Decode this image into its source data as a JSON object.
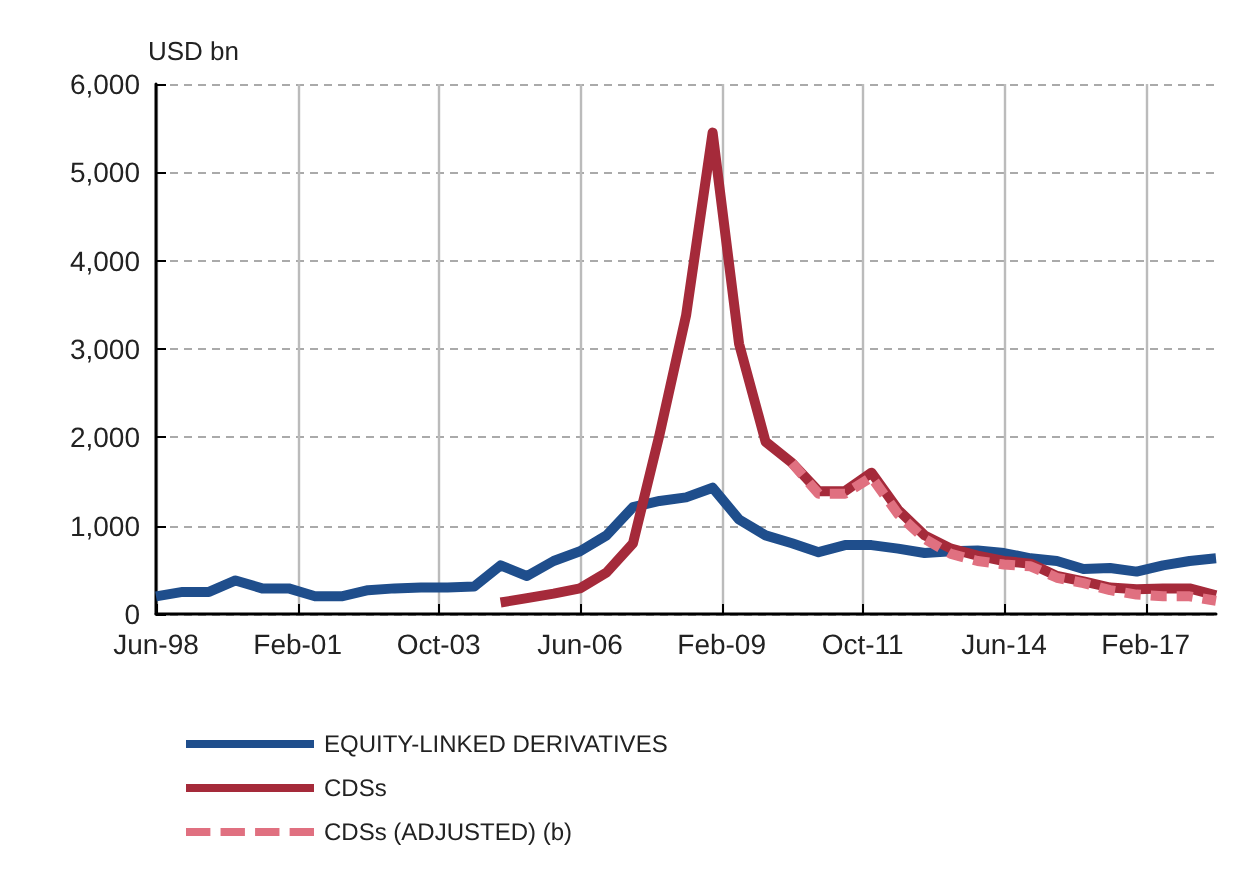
{
  "chart_data": {
    "type": "line",
    "ylabel": "USD bn",
    "x": [
      "1998-06",
      "1998-12",
      "1999-06",
      "1999-12",
      "2000-06",
      "2000-12",
      "2001-06",
      "2001-12",
      "2002-06",
      "2002-12",
      "2003-06",
      "2003-12",
      "2004-06",
      "2004-12",
      "2005-06",
      "2005-12",
      "2006-06",
      "2006-12",
      "2007-06",
      "2007-12",
      "2008-06",
      "2008-12",
      "2009-06",
      "2009-12",
      "2010-06",
      "2010-12",
      "2011-06",
      "2011-12",
      "2012-06",
      "2012-12",
      "2013-06",
      "2013-12",
      "2014-06",
      "2014-12",
      "2015-06",
      "2015-12",
      "2016-06",
      "2016-12",
      "2017-06",
      "2017-12",
      "2018-06"
    ],
    "series": [
      {
        "name": "EQUITY-LINKED DERIVATIVES",
        "color": "#1f4e8c",
        "line_style": "solid",
        "values": [
          200,
          250,
          250,
          380,
          290,
          290,
          200,
          200,
          270,
          290,
          300,
          300,
          310,
          550,
          430,
          600,
          710,
          890,
          1210,
          1280,
          1320,
          1430,
          1070,
          890,
          800,
          700,
          780,
          780,
          740,
          690,
          710,
          720,
          690,
          630,
          600,
          510,
          520,
          480,
          550,
          600,
          630
        ]
      },
      {
        "name": "CDSs",
        "color": "#a52a3a",
        "line_style": "solid",
        "values": [
          null,
          null,
          null,
          null,
          null,
          null,
          null,
          null,
          null,
          null,
          null,
          null,
          null,
          130,
          180,
          230,
          290,
          470,
          800,
          2030,
          3380,
          5450,
          3060,
          1950,
          1710,
          1390,
          1390,
          1600,
          1180,
          890,
          740,
          660,
          600,
          570,
          430,
          370,
          300,
          280,
          290,
          290,
          210
        ]
      },
      {
        "name": "CDSs (ADJUSTED) (b)",
        "color": "#e07080",
        "line_style": "dashed",
        "values": [
          null,
          null,
          null,
          null,
          null,
          null,
          null,
          null,
          null,
          null,
          null,
          null,
          null,
          null,
          null,
          null,
          null,
          null,
          null,
          null,
          null,
          null,
          null,
          null,
          1710,
          1360,
          1360,
          1550,
          1130,
          850,
          680,
          600,
          560,
          540,
          410,
          350,
          270,
          220,
          200,
          200,
          150
        ]
      }
    ],
    "xlim": [
      "1998-06",
      "2018-06"
    ],
    "xticks": [
      {
        "value": "1998-06",
        "label": "Jun-98"
      },
      {
        "value": "2001-02",
        "label": "Feb-01"
      },
      {
        "value": "2003-10",
        "label": "Oct-03"
      },
      {
        "value": "2006-06",
        "label": "Jun-06"
      },
      {
        "value": "2009-02",
        "label": "Feb-09"
      },
      {
        "value": "2011-10",
        "label": "Oct-11"
      },
      {
        "value": "2014-06",
        "label": "Jun-14"
      },
      {
        "value": "2017-02",
        "label": "Feb-17"
      }
    ],
    "ylim": [
      0,
      6000
    ],
    "yticks": [
      0,
      {
        "value": 1000,
        "label": "1,000"
      },
      {
        "value": 2000,
        "label": "2,000"
      },
      {
        "value": 3000,
        "label": "3,000"
      },
      {
        "value": 4000,
        "label": "4,000"
      },
      {
        "value": 5000,
        "label": "5,000"
      },
      {
        "value": 6000,
        "label": "6,000"
      }
    ],
    "grid": true,
    "legend": "bottom left",
    "marker": "none"
  }
}
